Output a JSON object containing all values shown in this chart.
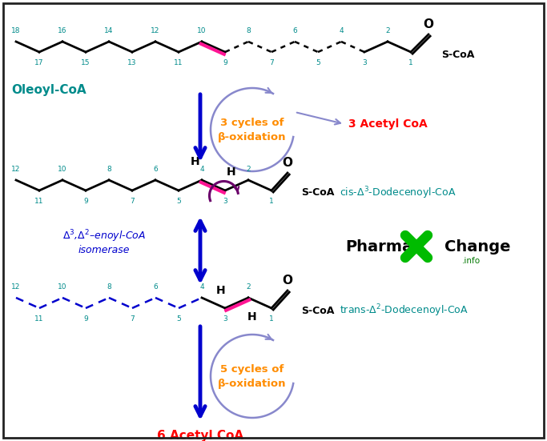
{
  "bg_color": "#ffffff",
  "border_color": "#222222",
  "teal": "#008B8B",
  "orange": "#FF8C00",
  "red": "#FF0000",
  "blue": "#0000CD",
  "pink": "#FF1493",
  "dark_purple": "#6B006B",
  "gray_purple": "#8888CC",
  "green": "#00BB00",
  "black": "#000000",
  "oleoyl_label": "Oleoyl-CoA",
  "cis_label": "cis-Δ3-Dodecenoyl-CoA",
  "trans_label": "trans-Δ2-Dodecenoyl-CoA"
}
